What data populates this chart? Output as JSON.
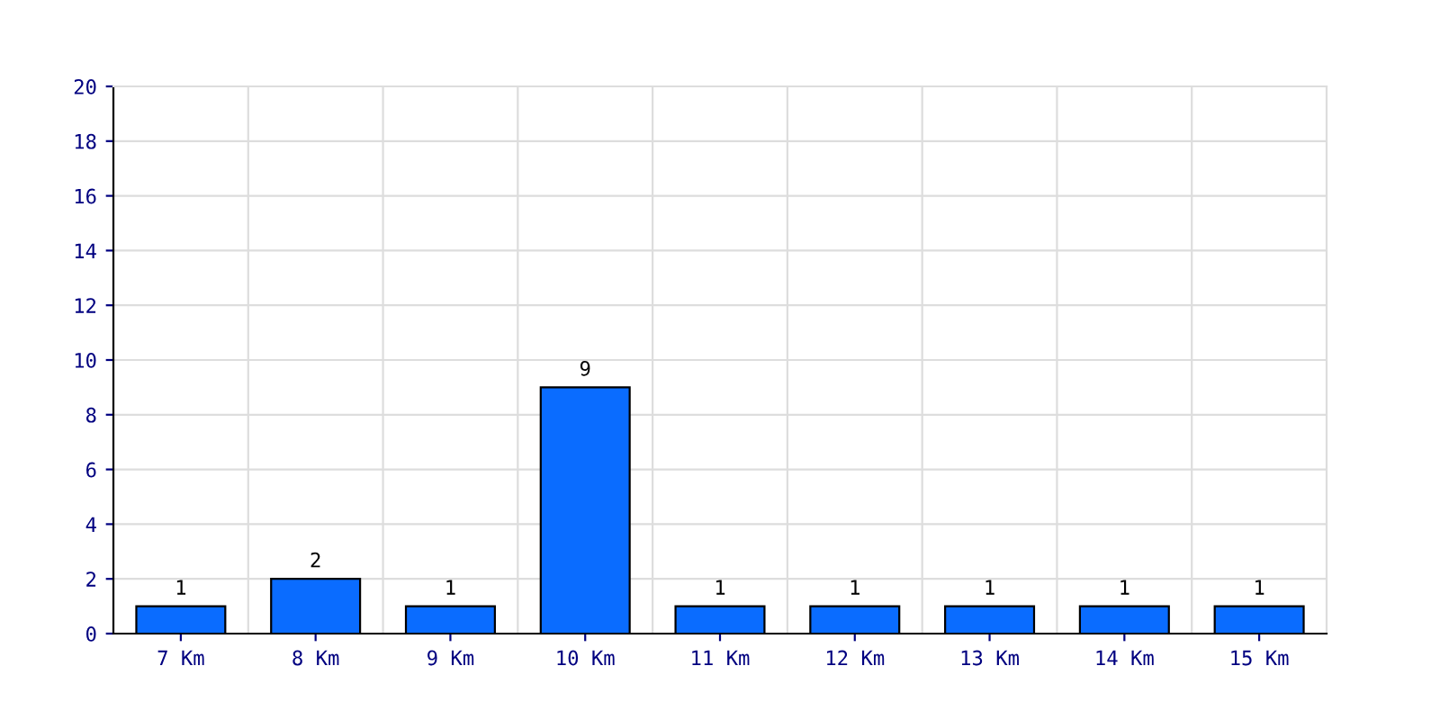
{
  "chart_data": {
    "type": "bar",
    "categories": [
      "7 Km",
      "8 Km",
      "9 Km",
      "10 Km",
      "11 Km",
      "12 Km",
      "13 Km",
      "14 Km",
      "15 Km"
    ],
    "values": [
      1,
      2,
      1,
      9,
      1,
      1,
      1,
      1,
      1
    ],
    "color": "#0a6cff",
    "ylim": [
      0,
      20
    ],
    "yticks": [
      0,
      2,
      4,
      6,
      8,
      10,
      12,
      14,
      16,
      18,
      20
    ],
    "grid": true,
    "data_labels": true
  }
}
